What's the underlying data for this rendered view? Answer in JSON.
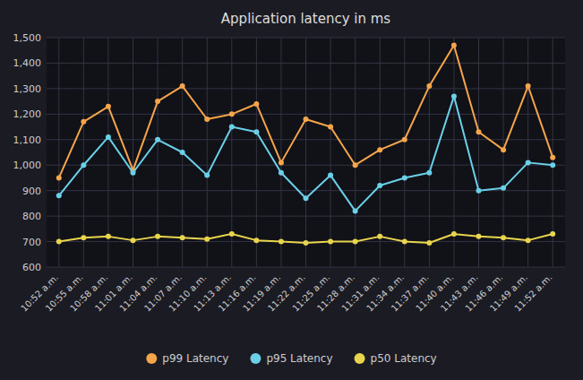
{
  "chart_data": {
    "type": "line",
    "title": "Application latency in ms",
    "categories": [
      "10:52 a.m.",
      "10:55 a.m.",
      "10:58 a.m.",
      "11:01 a.m.",
      "11:04 a.m.",
      "11:07 a.m.",
      "11:10 a.m.",
      "11:13 a.m.",
      "11:16 a.m.",
      "11:19 a.m.",
      "11:22 a.m.",
      "11:25 a.m.",
      "11:28 a.m.",
      "11:31 a.m.",
      "11:34 a.m.",
      "11:37 a.m.",
      "11:40 a.m.",
      "11:43 a.m.",
      "11:46 a.m.",
      "11:49 a.m.",
      "11:52 a.m."
    ],
    "series": [
      {
        "name": "p99 Latency",
        "color": "#f5a54a",
        "values": [
          950,
          1170,
          1230,
          980,
          1250,
          1310,
          1180,
          1200,
          1240,
          1010,
          1180,
          1150,
          1000,
          1060,
          1100,
          1310,
          1470,
          1130,
          1060,
          1310,
          1030
        ]
      },
      {
        "name": "p95 Latency",
        "color": "#6ad0e8",
        "values": [
          880,
          1000,
          1110,
          970,
          1100,
          1050,
          960,
          1150,
          1130,
          970,
          870,
          960,
          820,
          920,
          950,
          970,
          1270,
          900,
          910,
          1010,
          1000
        ]
      },
      {
        "name": "p50 Latency",
        "color": "#e8d44d",
        "values": [
          700,
          715,
          720,
          705,
          720,
          715,
          710,
          730,
          705,
          700,
          695,
          700,
          700,
          720,
          700,
          695,
          730,
          720,
          715,
          705,
          730
        ]
      }
    ],
    "ylim": [
      600,
      1500
    ],
    "yticks": [
      600,
      700,
      800,
      900,
      {
        "value": 1000,
        "label": "1,000"
      },
      {
        "value": 1100,
        "label": "1,100"
      },
      {
        "value": 1200,
        "label": "1,200"
      },
      {
        "value": 1300,
        "label": "1,300"
      },
      {
        "value": 1400,
        "label": "1,400"
      },
      {
        "value": 1500,
        "label": "1,500"
      }
    ],
    "grid": true,
    "legend": "bottom",
    "marker": "circle"
  }
}
